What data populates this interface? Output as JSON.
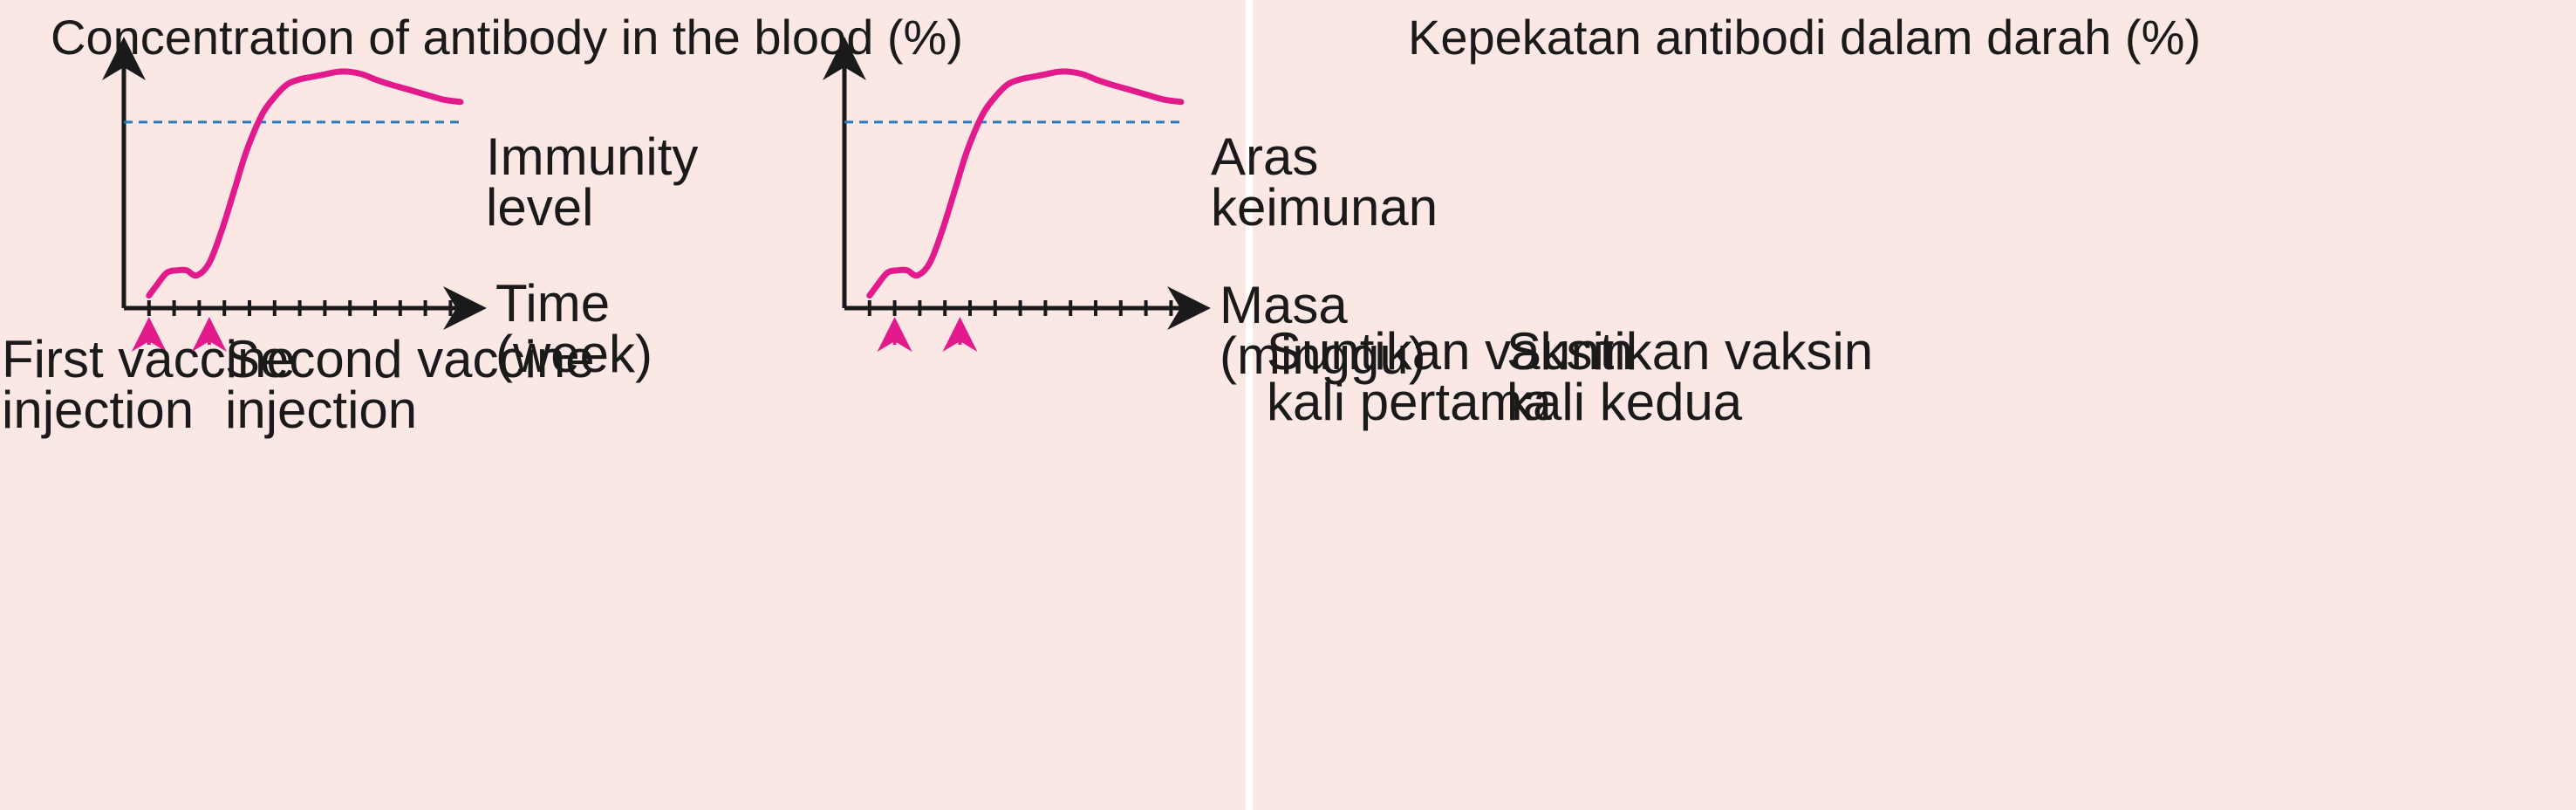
{
  "colors": {
    "panel_background": "#fbe7e4",
    "axis": "#1a1a1a",
    "curve": "#e21a8c",
    "threshold_line": "#2a78c0",
    "marker": "#e21a8c"
  },
  "chart_data": [
    {
      "type": "line",
      "language": "English",
      "ylabel": "Concentration of antibody in the blood (%)",
      "xlabel_lines": [
        "Time",
        "(week)"
      ],
      "xlim": [
        0,
        14
      ],
      "ylim": [
        0,
        100
      ],
      "x_tick_count": 13,
      "grid": false,
      "series": [
        {
          "x": [
            1.0,
            1.3,
            1.7,
            2.1,
            2.5,
            2.9,
            3.4,
            3.9,
            4.4,
            4.9,
            5.5,
            6.0,
            6.5,
            7.0,
            7.5,
            8.0,
            8.5,
            9.0,
            9.5,
            10.0,
            10.6,
            11.3,
            12.0,
            12.7,
            13.4
          ],
          "y": [
            5,
            9,
            14,
            15,
            15,
            13,
            18,
            31,
            47,
            63,
            77,
            84,
            89,
            91,
            92,
            93,
            94,
            94,
            93,
            91,
            89,
            87,
            85,
            83,
            82
          ]
        }
      ],
      "threshold": {
        "y": 74,
        "label_lines": [
          "Immunity",
          "level"
        ]
      },
      "annotations": [
        {
          "x": 1.0,
          "label_lines": [
            "First vaccine",
            "injection"
          ]
        },
        {
          "x": 3.4,
          "label_lines": [
            "Second vaccine",
            "injection"
          ]
        }
      ]
    },
    {
      "type": "line",
      "language": "Malay",
      "ylabel": "Kepekatan antibodi dalam darah (%)",
      "xlabel_lines": [
        "Masa",
        "(minggu)"
      ],
      "xlim": [
        0,
        14
      ],
      "ylim": [
        0,
        100
      ],
      "x_tick_count": 13,
      "grid": false,
      "series": [
        {
          "x": [
            1.0,
            1.3,
            1.7,
            2.1,
            2.5,
            2.9,
            3.4,
            3.9,
            4.4,
            4.9,
            5.5,
            6.0,
            6.5,
            7.0,
            7.5,
            8.0,
            8.5,
            9.0,
            9.5,
            10.0,
            10.6,
            11.3,
            12.0,
            12.7,
            13.4
          ],
          "y": [
            5,
            9,
            14,
            15,
            15,
            13,
            18,
            31,
            47,
            63,
            77,
            84,
            89,
            91,
            92,
            93,
            94,
            94,
            93,
            91,
            89,
            87,
            85,
            83,
            82
          ]
        }
      ],
      "threshold": {
        "y": 74,
        "label_lines": [
          "Aras",
          "keimunan"
        ]
      },
      "annotations": [
        {
          "x": 2.0,
          "label_lines": [
            "Suntikan vaksin",
            "kali pertama"
          ]
        },
        {
          "x": 4.6,
          "label_lines": [
            "Suntikan vaksin",
            "kali kedua"
          ]
        }
      ]
    }
  ]
}
